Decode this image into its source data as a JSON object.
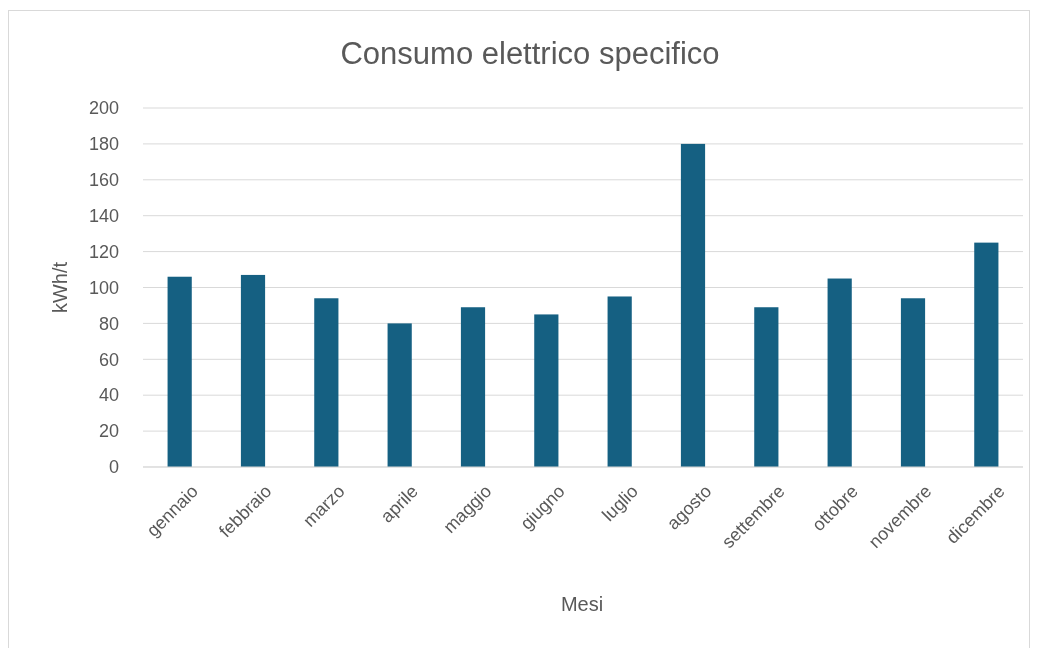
{
  "chart_data": {
    "type": "bar",
    "title": "Consumo elettrico specifico",
    "xlabel": "Mesi",
    "ylabel": "kWh/t",
    "categories": [
      "gennaio",
      "febbraio",
      "marzo",
      "aprile",
      "maggio",
      "giugno",
      "luglio",
      "agosto",
      "settembre",
      "ottobre",
      "novembre",
      "dicembre"
    ],
    "values": [
      106,
      107,
      94,
      80,
      89,
      85,
      95,
      180,
      89,
      105,
      94,
      125
    ],
    "color": "#156082",
    "ylim": [
      0,
      200
    ],
    "yticks": [
      0,
      20,
      40,
      60,
      80,
      100,
      120,
      140,
      160,
      180,
      200
    ],
    "grid": "y"
  }
}
